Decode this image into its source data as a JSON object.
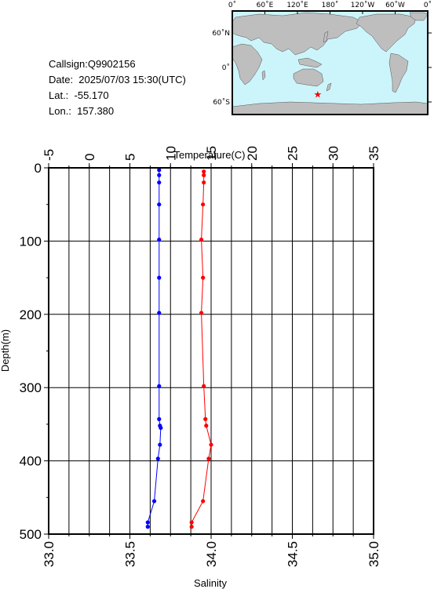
{
  "info": {
    "callsign": "Callsign:Q9902156",
    "date": "Date:  2025/07/03 15:30(UTC)",
    "lat": "Lat.:  -55.170",
    "lon": "Lon.:  157.380"
  },
  "map": {
    "lon_labels": [
      "0˚",
      "60˚E",
      "120˚E",
      "180˚",
      "120˚W",
      "60˚W",
      "0˚"
    ],
    "lat_labels": [
      "60˚N",
      "0˚",
      "60˚S"
    ],
    "station": {
      "lat": -55.17,
      "lon": 157.38
    },
    "colors": {
      "ocean": "#ccf5fb",
      "land": "#bebebe",
      "marker": "#ff0000"
    }
  },
  "chart_data": {
    "type": "line",
    "ylabel": "Depth(m)",
    "xlabel_top": "Temperature(C)",
    "xlabel_bottom": "Salinity",
    "ylim": [
      0,
      500
    ],
    "y_inverted": true,
    "temp_lim": [
      -5,
      35
    ],
    "sal_lim": [
      33.0,
      35.0
    ],
    "y_ticks": [
      "0",
      "100",
      "200",
      "300",
      "400",
      "500"
    ],
    "temp_ticks": [
      "-5",
      "0",
      "5",
      "10",
      "15",
      "20",
      "25",
      "30",
      "35"
    ],
    "sal_ticks": [
      "33.0",
      "33.5",
      "34.0",
      "34.5",
      "35.0"
    ],
    "grid": true,
    "series": [
      {
        "color": "#ff0000",
        "axis": "top",
        "x": [
          14.1,
          14.1,
          14.1,
          14.0,
          13.8,
          14.0,
          13.8,
          14.1,
          14.3,
          14.4,
          15.0,
          14.7,
          14.0,
          12.6,
          12.6
        ],
        "y": [
          5,
          10,
          20,
          50,
          98,
          150,
          198,
          298,
          343,
          352,
          378,
          397,
          455,
          484,
          490
        ]
      },
      {
        "color": "#0000ff",
        "axis": "bottom",
        "x": [
          33.68,
          33.68,
          33.68,
          33.68,
          33.68,
          33.68,
          33.68,
          33.68,
          33.68,
          33.685,
          33.69,
          33.685,
          33.673,
          33.65,
          33.61,
          33.61
        ],
        "y": [
          3,
          10,
          20,
          50,
          98,
          150,
          198,
          298,
          343,
          352,
          355,
          378,
          397,
          455,
          484,
          490
        ]
      }
    ]
  }
}
